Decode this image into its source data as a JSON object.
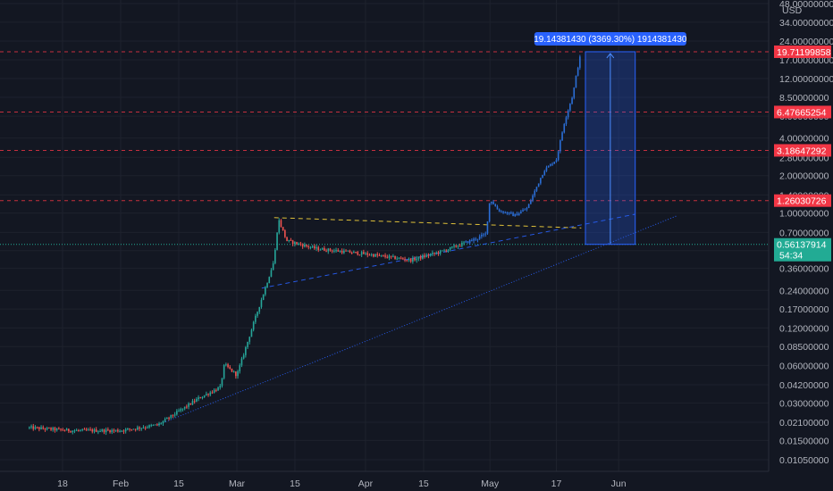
{
  "chart_data": {
    "type": "candlestick",
    "currency": "USD",
    "y_scale": "log",
    "y_ticks": [
      "48.00000000",
      "34.00000000",
      "24.00000000",
      "17.00000000",
      "12.00000000",
      "8.50000000",
      "6.00000000",
      "4.00000000",
      "2.80000000",
      "2.00000000",
      "1.40000000",
      "1.00000000",
      "0.70000000",
      "0.50000000",
      "0.36000000",
      "0.24000000",
      "0.17000000",
      "0.12000000",
      "0.08500000",
      "0.06000000",
      "0.04200000",
      "0.03000000",
      "0.02100000",
      "0.01500000",
      "0.01050000"
    ],
    "x_ticks": [
      "18",
      "Feb",
      "15",
      "Mar",
      "15",
      "Apr",
      "15",
      "May",
      "17",
      "Jun"
    ],
    "x_range": [
      "2021-01-10",
      "2021-06-15"
    ],
    "price_path": [
      {
        "date": "2021-01-10",
        "price": 0.019
      },
      {
        "date": "2021-01-20",
        "price": 0.018
      },
      {
        "date": "2021-02-01",
        "price": 0.018
      },
      {
        "date": "2021-02-10",
        "price": 0.02
      },
      {
        "date": "2021-02-20",
        "price": 0.033
      },
      {
        "date": "2021-02-25",
        "price": 0.04
      },
      {
        "date": "2021-02-26",
        "price": 0.061
      },
      {
        "date": "2021-03-01",
        "price": 0.05
      },
      {
        "date": "2021-03-05",
        "price": 0.13
      },
      {
        "date": "2021-03-08",
        "price": 0.26
      },
      {
        "date": "2021-03-10",
        "price": 0.42
      },
      {
        "date": "2021-03-11",
        "price": 0.9
      },
      {
        "date": "2021-03-13",
        "price": 0.6
      },
      {
        "date": "2021-03-20",
        "price": 0.52
      },
      {
        "date": "2021-04-01",
        "price": 0.47
      },
      {
        "date": "2021-04-12",
        "price": 0.42
      },
      {
        "date": "2021-04-20",
        "price": 0.5
      },
      {
        "date": "2021-04-28",
        "price": 0.63
      },
      {
        "date": "2021-04-30",
        "price": 0.68
      },
      {
        "date": "2021-05-01",
        "price": 1.3
      },
      {
        "date": "2021-05-03",
        "price": 1.05
      },
      {
        "date": "2021-05-07",
        "price": 0.96
      },
      {
        "date": "2021-05-10",
        "price": 1.1
      },
      {
        "date": "2021-05-14",
        "price": 2.2
      },
      {
        "date": "2021-05-17",
        "price": 2.7
      },
      {
        "date": "2021-05-19",
        "price": 5.5
      },
      {
        "date": "2021-05-21",
        "price": 9.0
      },
      {
        "date": "2021-05-22",
        "price": 14.0
      },
      {
        "date": "2021-05-23",
        "price": 19.7
      }
    ],
    "horizontal_levels": [
      {
        "label": "19.71199858",
        "color": "#f23645"
      },
      {
        "label": "6.47665254",
        "color": "#f23645"
      },
      {
        "label": "3.18647292",
        "color": "#f23645"
      },
      {
        "label": "1.26030726",
        "color": "#f23645"
      }
    ],
    "current_price": {
      "label": "0.56137914",
      "countdown": "54:34",
      "color": "#22ab94"
    },
    "measure": {
      "text": "19.14381430 (3369.30%) 1914381430",
      "color": "#2962ff"
    },
    "trendlines": [
      {
        "style": "dashed",
        "color": "#f5d33c"
      },
      {
        "style": "dashed",
        "color": "#2962ff"
      },
      {
        "style": "dotted",
        "color": "#2962ff"
      }
    ],
    "grid": true,
    "up_color": "#26a69a",
    "down_color": "#ef5350"
  }
}
